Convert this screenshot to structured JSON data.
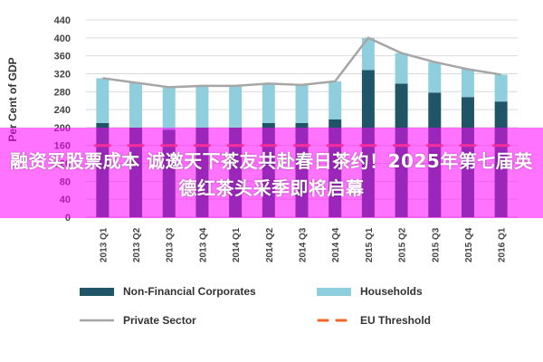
{
  "chart_data": {
    "type": "bar",
    "stacked": true,
    "ylabel": "Per Cent of GDP",
    "ylim": [
      0,
      440
    ],
    "yticks": [
      0,
      40,
      80,
      120,
      160,
      200,
      240,
      280,
      320,
      360,
      400,
      440
    ],
    "categories": [
      "2013 Q1",
      "2013 Q2",
      "2013 Q3",
      "2013 Q4",
      "2014 Q1",
      "2014 Q2",
      "2014 Q3",
      "2014 Q4",
      "2015 Q1",
      "2015 Q2",
      "2015 Q3",
      "2015 Q4",
      "2016 Q1"
    ],
    "series": [
      {
        "name": "Non-Financial Corporates",
        "kind": "bar",
        "color": "#1f5566",
        "values": [
          210,
          200,
          195,
          200,
          200,
          210,
          210,
          218,
          328,
          298,
          278,
          268,
          258
        ]
      },
      {
        "name": "Households",
        "kind": "bar",
        "color": "#8fcfdd",
        "values": [
          100,
          100,
          95,
          93,
          93,
          88,
          85,
          85,
          72,
          68,
          68,
          62,
          60
        ]
      },
      {
        "name": "Private Sector",
        "kind": "line",
        "color": "#a6a6a6",
        "values": [
          310,
          300,
          290,
          293,
          293,
          298,
          295,
          303,
          400,
          366,
          346,
          330,
          318
        ]
      },
      {
        "name": "EU Threshold",
        "kind": "dashed",
        "color": "#f26522",
        "values": [
          160,
          160,
          160,
          160,
          160,
          160,
          160,
          160,
          160,
          160,
          160,
          160,
          160
        ]
      }
    ],
    "legend": "bottom",
    "grid": true,
    "grid_axis": "y"
  },
  "banner": {
    "text": "融资买股票成本 诚邀天下茶友共赴春日茶约！2025年第七届英德红茶头采季即将启幕"
  }
}
